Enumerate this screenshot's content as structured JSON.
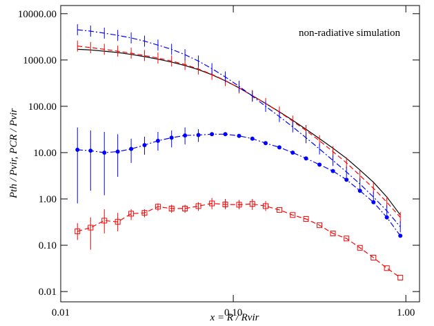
{
  "chart_data": {
    "type": "line",
    "log_x": true,
    "log_y": true,
    "annotation": "non-radiative simulation",
    "x_label": "x = R / Rvir",
    "y_label": "Pth / Pvir,  PCR / Pvir",
    "xlim": [
      0.01,
      1.2
    ],
    "ylim": [
      0.006,
      15000
    ],
    "xticks": [
      0.01,
      {
        "value": 0.1,
        "label": "0.10"
      },
      {
        "value": 1,
        "label": "1.00"
      }
    ],
    "yticks": [
      {
        "value": 0.01,
        "label": "0.01"
      },
      {
        "value": 0.1,
        "label": "0.10"
      },
      {
        "value": 1,
        "label": "1.00"
      },
      {
        "value": 10,
        "label": "10.00"
      },
      {
        "value": 100,
        "label": "100.00"
      },
      {
        "value": 1000,
        "label": "1000.00"
      },
      {
        "value": 10000,
        "label": "10000.00"
      }
    ],
    "x": [
      0.0125,
      0.0149,
      0.0179,
      0.0214,
      0.0256,
      0.0306,
      0.0366,
      0.0439,
      0.0525,
      0.0628,
      0.0752,
      0.0899,
      0.108,
      0.129,
      0.154,
      0.185,
      0.221,
      0.264,
      0.316,
      0.378,
      0.453,
      0.542,
      0.649,
      0.776,
      0.929
    ],
    "series": [
      {
        "color": "#000000",
        "dash": "none",
        "marker": "none",
        "values": [
          1700,
          1650,
          1550,
          1450,
          1320,
          1180,
          1040,
          900,
          760,
          620,
          480,
          355,
          250,
          170,
          115,
          76,
          50,
          32,
          20,
          12.5,
          7.5,
          4.2,
          2.3,
          1.1,
          0.45
        ]
      },
      {
        "color": "#ff0000",
        "dash": "7 4",
        "marker": "cross",
        "values": [
          2000,
          1850,
          1700,
          1550,
          1400,
          1250,
          1100,
          950,
          800,
          640,
          490,
          360,
          250,
          170,
          115,
          75,
          48,
          30,
          18,
          10.5,
          6,
          3.2,
          1.7,
          0.85,
          0.4
        ]
      },
      {
        "color": "#0000ff",
        "dash": "8 3 2 3",
        "marker": "cross",
        "values": [
          4500,
          4200,
          3800,
          3400,
          3000,
          2550,
          2100,
          1700,
          1300,
          950,
          650,
          430,
          270,
          165,
          100,
          60,
          36,
          21,
          12,
          6.8,
          3.8,
          2.1,
          1.1,
          0.55,
          0.25
        ]
      },
      {
        "color": "#0000ff",
        "dash": "8 3 2 3",
        "marker": "circle",
        "values": [
          11.5,
          11,
          10,
          10.5,
          12,
          14.5,
          18,
          21,
          23.5,
          24,
          25,
          25,
          23,
          20,
          16,
          13,
          10,
          7.5,
          5.5,
          4.0,
          2.6,
          1.5,
          0.85,
          0.4,
          0.16
        ],
        "error_low": [
          0.8,
          1.5,
          1.2,
          3,
          6,
          9,
          11,
          13,
          15,
          17,
          null,
          null,
          null,
          null,
          null,
          null,
          null,
          null,
          null,
          null,
          null,
          null,
          null,
          null,
          null
        ],
        "error_high": [
          35,
          30,
          28,
          25,
          20,
          22,
          28,
          30,
          35,
          32,
          null,
          null,
          null,
          null,
          null,
          null,
          null,
          null,
          null,
          null,
          null,
          null,
          null,
          null,
          null
        ]
      },
      {
        "color": "#ff0000",
        "dash": "7 4",
        "marker": "square",
        "values": [
          0.2,
          0.24,
          0.34,
          0.32,
          0.48,
          0.5,
          0.68,
          0.62,
          0.62,
          0.7,
          0.8,
          0.76,
          0.75,
          0.78,
          0.7,
          0.58,
          0.45,
          0.37,
          0.27,
          0.18,
          0.14,
          0.088,
          0.054,
          0.032,
          0.02
        ],
        "error_low": [
          0.13,
          0.08,
          0.18,
          0.2,
          0.35,
          0.4,
          0.55,
          0.5,
          0.5,
          0.55,
          0.6,
          0.6,
          0.6,
          0.58,
          0.55,
          null,
          null,
          null,
          null,
          null,
          null,
          null,
          null,
          null,
          null
        ],
        "error_high": [
          0.3,
          0.4,
          0.6,
          0.5,
          0.6,
          0.6,
          0.8,
          0.75,
          0.75,
          0.85,
          1.05,
          1.0,
          0.95,
          1.0,
          0.9,
          null,
          null,
          null,
          null,
          null,
          null,
          null,
          null,
          null,
          null
        ]
      }
    ]
  }
}
